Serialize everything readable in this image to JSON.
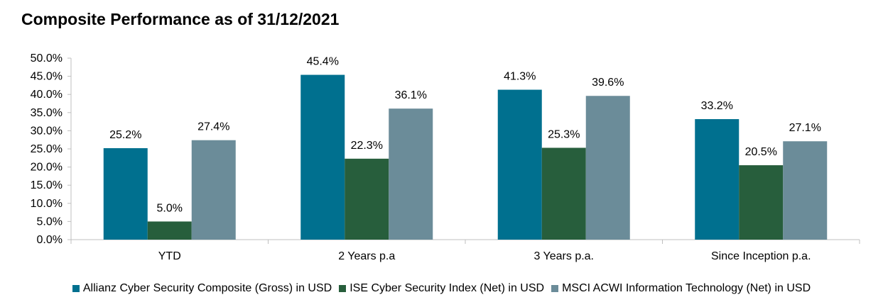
{
  "chart_data": {
    "type": "bar",
    "title": "Composite Performance as of 31/12/2021",
    "xlabel": "",
    "ylabel": "",
    "ylim": [
      0,
      50
    ],
    "y_tick_step": 5,
    "y_tick_format": "percent_1dp",
    "grid": false,
    "legend_position": "bottom",
    "categories": [
      "YTD",
      "2 Years p.a",
      "3 Years p.a.",
      "Since Inception p.a."
    ],
    "series": [
      {
        "name": "Allianz Cyber Security Composite (Gross) in USD",
        "color": "#00708F",
        "values": [
          25.2,
          45.4,
          41.3,
          33.2
        ],
        "labels": [
          "25.2%",
          "45.4%",
          "41.3%",
          "33.2%"
        ]
      },
      {
        "name": "ISE Cyber Security Index (Net) in USD",
        "color": "#275E3C",
        "values": [
          5.0,
          22.3,
          25.3,
          20.5
        ],
        "labels": [
          "5.0%",
          "22.3%",
          "25.3%",
          "20.5%"
        ]
      },
      {
        "name": "MSCI ACWI Information Technology (Net) in USD",
        "color": "#6B8C99",
        "values": [
          27.4,
          36.1,
          39.6,
          27.1
        ],
        "labels": [
          "27.4%",
          "36.1%",
          "39.6%",
          "27.1%"
        ]
      }
    ]
  }
}
